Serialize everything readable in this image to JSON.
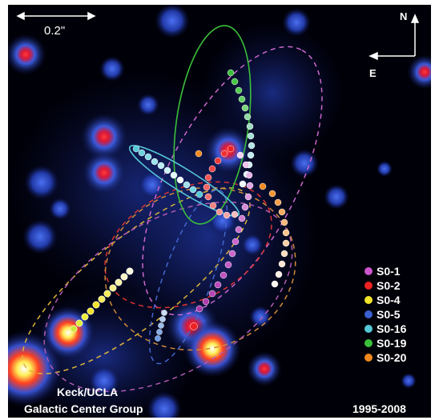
{
  "image": {
    "description_free": true,
    "background_color": "#000008",
    "frame_color": "#ffffff"
  },
  "scale_bar": {
    "label": "0.2\""
  },
  "compass": {
    "north": "N",
    "east": "E"
  },
  "legend": {
    "items": [
      {
        "label": "S0-1",
        "color": "#cc55cc"
      },
      {
        "label": "S0-2",
        "color": "#ee2222"
      },
      {
        "label": "S0-4",
        "color": "#f2e42a"
      },
      {
        "label": "S0-5",
        "color": "#3a5fcf"
      },
      {
        "label": "S0-16",
        "color": "#55c8d8"
      },
      {
        "label": "S0-19",
        "color": "#3bbf3b"
      },
      {
        "label": "S0-20",
        "color": "#f08a1e"
      }
    ]
  },
  "credit": {
    "line1": "Keck/UCLA",
    "line2": "Galactic Center Group"
  },
  "years": "1995-2008"
}
